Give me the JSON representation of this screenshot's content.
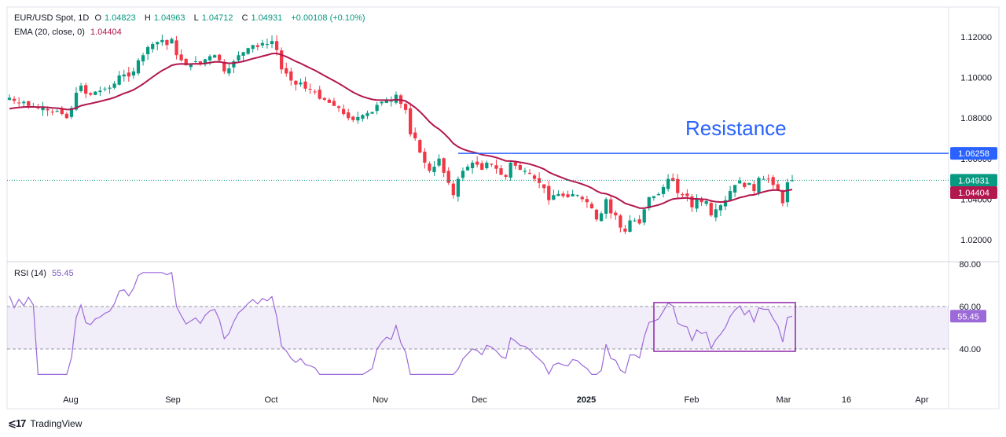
{
  "header": {
    "symbol": "EUR/USD Spot, 1D",
    "open_label": "O",
    "open": "1.04823",
    "high_label": "H",
    "high": "1.04963",
    "low_label": "L",
    "low": "1.04712",
    "close_label": "C",
    "close": "1.04931",
    "change": "+0.00108 (+0.10%)",
    "ema_label": "EMA (20, close, 0)",
    "ema_value": "1.04404",
    "rsi_label": "RSI (14)",
    "rsi_value": "55.45"
  },
  "footer": {
    "brand": "TradingView"
  },
  "colors": {
    "up": "#089981",
    "down": "#f23645",
    "ema": "#b2174e",
    "rsi": "#9c6ad8",
    "resistance": "#2962ff",
    "box": "#8e24aa"
  },
  "chart_data": [
    {
      "type": "candlestick",
      "title": "EUR/USD Spot, 1D",
      "ylim": [
        1.01,
        1.13
      ],
      "y_ticks": [
        "1.12000",
        "1.10000",
        "1.08000",
        "1.06000",
        "1.04000",
        "1.02000"
      ],
      "x_ticks": [
        "Aug",
        "Sep",
        "Oct",
        "Nov",
        "Dec",
        "2025",
        "Feb",
        "Mar",
        "16",
        "Apr"
      ],
      "price_labels": {
        "resistance": "1.06258",
        "close": "1.04931",
        "ema": "1.04404"
      },
      "annotations": [
        {
          "text": "Resistance",
          "level": 1.06258
        }
      ],
      "close_series": [
        1.09,
        1.0885,
        1.0875,
        1.088,
        1.086,
        1.0855,
        1.0848,
        1.0852,
        1.0838,
        1.083,
        1.0835,
        1.082,
        1.08,
        1.085,
        1.0925,
        1.096,
        1.092,
        1.0915,
        1.093,
        1.0935,
        1.0945,
        1.095,
        1.097,
        1.101,
        1.1015,
        1.1005,
        1.103,
        1.1085,
        1.111,
        1.115,
        1.1165,
        1.1175,
        1.1185,
        1.116,
        1.119,
        1.111,
        1.1085,
        1.106,
        1.107,
        1.108,
        1.1065,
        1.109,
        1.1105,
        1.111,
        1.1085,
        1.103,
        1.1045,
        1.108,
        1.111,
        1.1125,
        1.1145,
        1.116,
        1.115,
        1.117,
        1.1165,
        1.118,
        1.1135,
        1.104,
        1.102,
        1.0985,
        1.0965,
        1.0975,
        1.0945,
        1.094,
        1.093,
        1.0895,
        1.089,
        1.0875,
        1.086,
        1.085,
        1.082,
        1.08,
        1.079,
        1.0805,
        1.0815,
        1.0825,
        1.083,
        1.0865,
        1.088,
        1.089,
        1.0885,
        1.0915,
        1.087,
        1.084,
        1.072,
        1.07,
        1.063,
        1.058,
        1.054,
        1.056,
        1.06,
        1.053,
        1.048,
        1.042,
        1.05,
        1.054,
        1.056,
        1.058,
        1.057,
        1.0545,
        1.058,
        1.057,
        1.055,
        1.052,
        1.051,
        1.058,
        1.0565,
        1.0545,
        1.054,
        1.0525,
        1.05,
        1.048,
        1.0455,
        1.0395,
        1.042,
        1.0425,
        1.0415,
        1.041,
        1.0425,
        1.042,
        1.04,
        1.0385,
        1.0355,
        1.03,
        1.033,
        1.04,
        1.033,
        1.032,
        1.026,
        1.024,
        1.0295,
        1.0295,
        1.028,
        1.035,
        1.041,
        1.0415,
        1.0425,
        1.046,
        1.05,
        1.049,
        1.043,
        1.042,
        1.0415,
        1.036,
        1.04,
        1.0385,
        1.039,
        1.032,
        1.035,
        1.037,
        1.0395,
        1.044,
        1.047,
        1.049,
        1.046,
        1.048,
        1.044,
        1.0505,
        1.05,
        1.05,
        1.047,
        1.0445,
        1.038,
        1.0483,
        1.0493
      ],
      "ema": {
        "label": "EMA (20, close, 0)",
        "last": 1.04404
      },
      "notes": "Daily OHLC candles from mid-Jul 2024 to early Mar 2025; peak near 1.1200 late Sep, low near 1.0180 mid Jan."
    },
    {
      "type": "line",
      "title": "RSI (14)",
      "ylim": [
        20,
        80
      ],
      "y_ticks": [
        "80.00",
        "60.00",
        "40.00"
      ],
      "bands": [
        40,
        60
      ],
      "last_label": "55.45",
      "x_ticks": [
        "Aug",
        "Sep",
        "Oct",
        "Nov",
        "Dec",
        "2025",
        "Feb",
        "Mar",
        "16",
        "Apr"
      ]
    }
  ]
}
